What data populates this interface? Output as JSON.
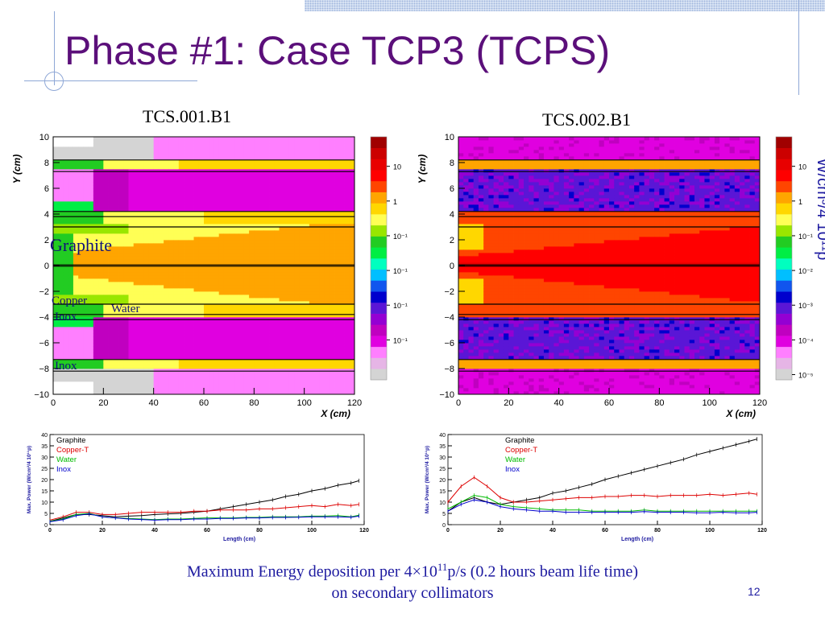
{
  "title": "Phase #1: Case TCP3 (TCPS)",
  "panels": [
    {
      "label": "TCS.001.B1"
    },
    {
      "label": "TCS.002.B1"
    }
  ],
  "colorbar": {
    "unit_label": "W/cm³/4 10¹¹p",
    "left_ticks": [
      "10",
      "1",
      "10⁻¹",
      "10⁻¹",
      "10⁻¹",
      "10⁻¹"
    ],
    "right_ticks": [
      "10",
      "1",
      "10⁻¹",
      "10⁻²",
      "10⁻³",
      "10⁻⁴",
      "10⁻⁵"
    ],
    "colors": [
      "#ffffff",
      "#d4d4d4",
      "#e6b5e6",
      "#ff7fff",
      "#e000e0",
      "#c000c0",
      "#9400d3",
      "#5a16d6",
      "#0000cd",
      "#1155ee",
      "#00bfff",
      "#00ffbf",
      "#00ee44",
      "#22cc22",
      "#99e600",
      "#ffff55",
      "#ffd700",
      "#ffa500",
      "#ff4500",
      "#ff0000",
      "#e80000",
      "#cc0000",
      "#a00000"
    ]
  },
  "overlays": {
    "graphite": "Graphite",
    "copper": "Copper",
    "water": "Water",
    "inox1": "Inox",
    "inox2": "Inox"
  },
  "caption": {
    "line1_pre": "Maximum Energy deposition per 4×10",
    "line1_sup": "11",
    "line1_post": "p/s  (0.2 hours beam life time)",
    "line2": "on secondary collimators"
  },
  "page_number": "12",
  "chart_data": [
    {
      "type": "heatmap",
      "title": "TCS.001.B1",
      "xlabel": "X (cm)",
      "ylabel": "Y (cm)",
      "xlim": [
        0,
        120
      ],
      "ylim": [
        -10,
        10
      ],
      "x_ticks": [
        "0",
        "20",
        "40",
        "60",
        "80",
        "100",
        "120"
      ],
      "y_ticks": [
        "10",
        "8",
        "6",
        "4",
        "2",
        "0",
        "−2",
        "−4",
        "−6",
        "−8",
        "−10"
      ],
      "layer_boundaries_y": [
        8.2,
        7.3,
        4.2,
        3.8,
        3.0,
        0.05,
        -0.05,
        -3.0,
        -3.8,
        -4.2,
        -7.3,
        -8.2
      ]
    },
    {
      "type": "heatmap",
      "title": "TCS.002.B1",
      "xlabel": "X (cm)",
      "ylabel": "Y (cm)",
      "xlim": [
        0,
        120
      ],
      "ylim": [
        -10,
        10
      ],
      "x_ticks": [
        "0",
        "20",
        "40",
        "60",
        "80",
        "100",
        "120"
      ],
      "y_ticks": [
        "10",
        "8",
        "6",
        "4",
        "2",
        "0",
        "−2",
        "−4",
        "−6",
        "−8",
        "−10"
      ],
      "layer_boundaries_y": [
        8.2,
        7.3,
        4.2,
        3.8,
        3.0,
        0.05,
        -0.05,
        -3.0,
        -3.8,
        -4.2,
        -7.3,
        -8.2
      ]
    },
    {
      "type": "line",
      "title": "",
      "xlabel": "Length (cm)",
      "ylabel": "Max. Power (W/cm³/4 10¹¹p)",
      "xlim": [
        0,
        120
      ],
      "ylim": [
        0,
        40
      ],
      "x_ticks": [
        0,
        20,
        40,
        60,
        80,
        100,
        120
      ],
      "y_ticks": [
        0,
        5,
        10,
        15,
        20,
        25,
        30,
        35,
        40
      ],
      "x": [
        0,
        5,
        10,
        15,
        20,
        25,
        30,
        35,
        40,
        45,
        50,
        55,
        60,
        65,
        70,
        75,
        80,
        85,
        90,
        95,
        100,
        105,
        110,
        115,
        118
      ],
      "series": [
        {
          "name": "Graphite",
          "color": "#000000",
          "values": [
            1.5,
            3,
            4.5,
            4.5,
            4,
            3.5,
            3.8,
            4,
            4.5,
            4.8,
            5,
            5.5,
            6,
            7,
            8,
            9,
            10,
            11,
            12.5,
            13.5,
            15,
            16,
            17.5,
            18.5,
            19.5
          ]
        },
        {
          "name": "Copper-T",
          "color": "#dd0000",
          "values": [
            2,
            3.5,
            5.5,
            5.5,
            4.5,
            4.5,
            5,
            5.5,
            5.5,
            5.5,
            5.5,
            6,
            6,
            6.5,
            6.5,
            6.5,
            7,
            7,
            7.5,
            8,
            8.5,
            8,
            9,
            8.5,
            9
          ]
        },
        {
          "name": "Water",
          "color": "#00bb00",
          "values": [
            1.5,
            2.5,
            4.5,
            5,
            3.5,
            3,
            2.8,
            2.5,
            2.2,
            2.5,
            2.5,
            2.8,
            3,
            3,
            3,
            3.2,
            3.2,
            3.5,
            3.5,
            3.5,
            3.8,
            3.8,
            4,
            3.5,
            4.2
          ]
        },
        {
          "name": "Inox",
          "color": "#0000cc",
          "values": [
            1.3,
            2.2,
            4,
            4.8,
            3.5,
            3,
            2.5,
            2.3,
            2,
            2.2,
            2.2,
            2.5,
            2.5,
            2.8,
            2.8,
            3,
            3,
            3.2,
            3.2,
            3.3,
            3.5,
            3.5,
            3.5,
            3.3,
            3.8
          ]
        }
      ]
    },
    {
      "type": "line",
      "title": "",
      "xlabel": "Length (cm)",
      "ylabel": "Max. Power (W/cm³/4 10¹¹p)",
      "xlim": [
        0,
        120
      ],
      "ylim": [
        0,
        40
      ],
      "x_ticks": [
        0,
        20,
        40,
        60,
        80,
        100,
        120
      ],
      "y_ticks": [
        0,
        5,
        10,
        15,
        20,
        25,
        30,
        35,
        40
      ],
      "x": [
        0,
        5,
        10,
        15,
        20,
        25,
        30,
        35,
        40,
        45,
        50,
        55,
        60,
        65,
        70,
        75,
        80,
        85,
        90,
        95,
        100,
        105,
        110,
        115,
        118
      ],
      "series": [
        {
          "name": "Graphite",
          "color": "#000000",
          "values": [
            6,
            10,
            12,
            10,
            9,
            10,
            11,
            12,
            14,
            15,
            16.5,
            18,
            20,
            21.5,
            23,
            24.5,
            26,
            27.5,
            29,
            31,
            32.5,
            34,
            35.5,
            37,
            38
          ]
        },
        {
          "name": "Copper-T",
          "color": "#dd0000",
          "values": [
            10,
            17,
            21,
            17,
            12,
            10,
            10,
            10.5,
            11,
            11.5,
            12,
            12,
            12.5,
            12.5,
            13,
            13,
            12.5,
            13,
            13,
            13,
            13.5,
            13,
            13.5,
            14,
            13.5
          ]
        },
        {
          "name": "Water",
          "color": "#00bb00",
          "values": [
            7,
            10,
            13,
            12,
            9,
            8,
            7.5,
            7,
            6.5,
            6.5,
            6.5,
            6,
            6,
            6,
            6,
            6.5,
            6,
            6,
            6,
            6,
            6,
            6,
            6,
            6,
            6
          ]
        },
        {
          "name": "Inox",
          "color": "#0000cc",
          "values": [
            6,
            9,
            11,
            10,
            8,
            7,
            6.5,
            6,
            6,
            5.5,
            5.5,
            5.5,
            5.5,
            5.5,
            5.5,
            5.8,
            5.5,
            5.5,
            5.5,
            5.3,
            5.3,
            5.5,
            5.3,
            5.3,
            5.5
          ]
        }
      ]
    }
  ]
}
